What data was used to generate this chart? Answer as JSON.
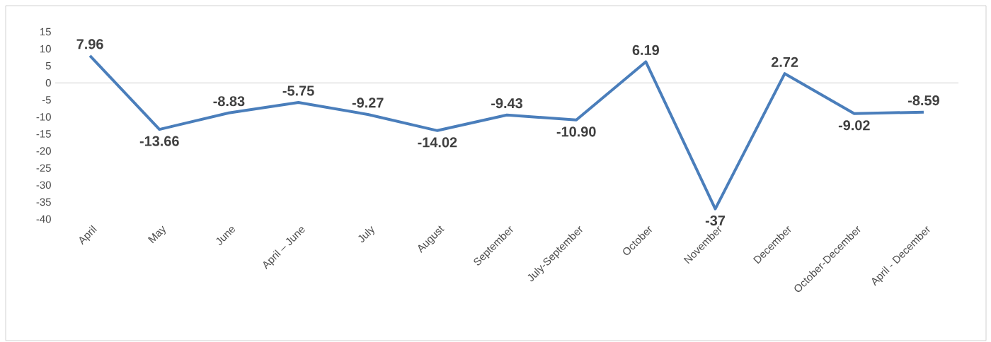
{
  "chart_data": {
    "type": "line",
    "categories": [
      "April",
      "May",
      "June",
      "April – June",
      "July",
      "August",
      "September",
      "July-September",
      "October",
      "November",
      "December",
      "October-December",
      "April - December"
    ],
    "values": [
      7.96,
      -13.66,
      -8.83,
      -5.75,
      -9.27,
      -14.02,
      -9.43,
      -10.9,
      6.19,
      -37,
      2.72,
      -9.02,
      -8.59
    ],
    "value_labels": [
      "7.96",
      "-13.66",
      "-8.83",
      "-5.75",
      "-9.27",
      "-14.02",
      "-9.43",
      "-10.90",
      "6.19",
      "-37",
      "2.72",
      "-9.02",
      "-8.59"
    ],
    "color": "#4a7ebb",
    "ylim": [
      -40,
      15
    ],
    "yticks": [
      -40,
      -35,
      -30,
      -25,
      -20,
      -15,
      -10,
      -5,
      0,
      5,
      10,
      15
    ],
    "ref_lines": [
      {
        "axis": "y",
        "value": 0,
        "color": "#d9d9d9"
      }
    ],
    "marker": "none",
    "line_style": "solid"
  }
}
